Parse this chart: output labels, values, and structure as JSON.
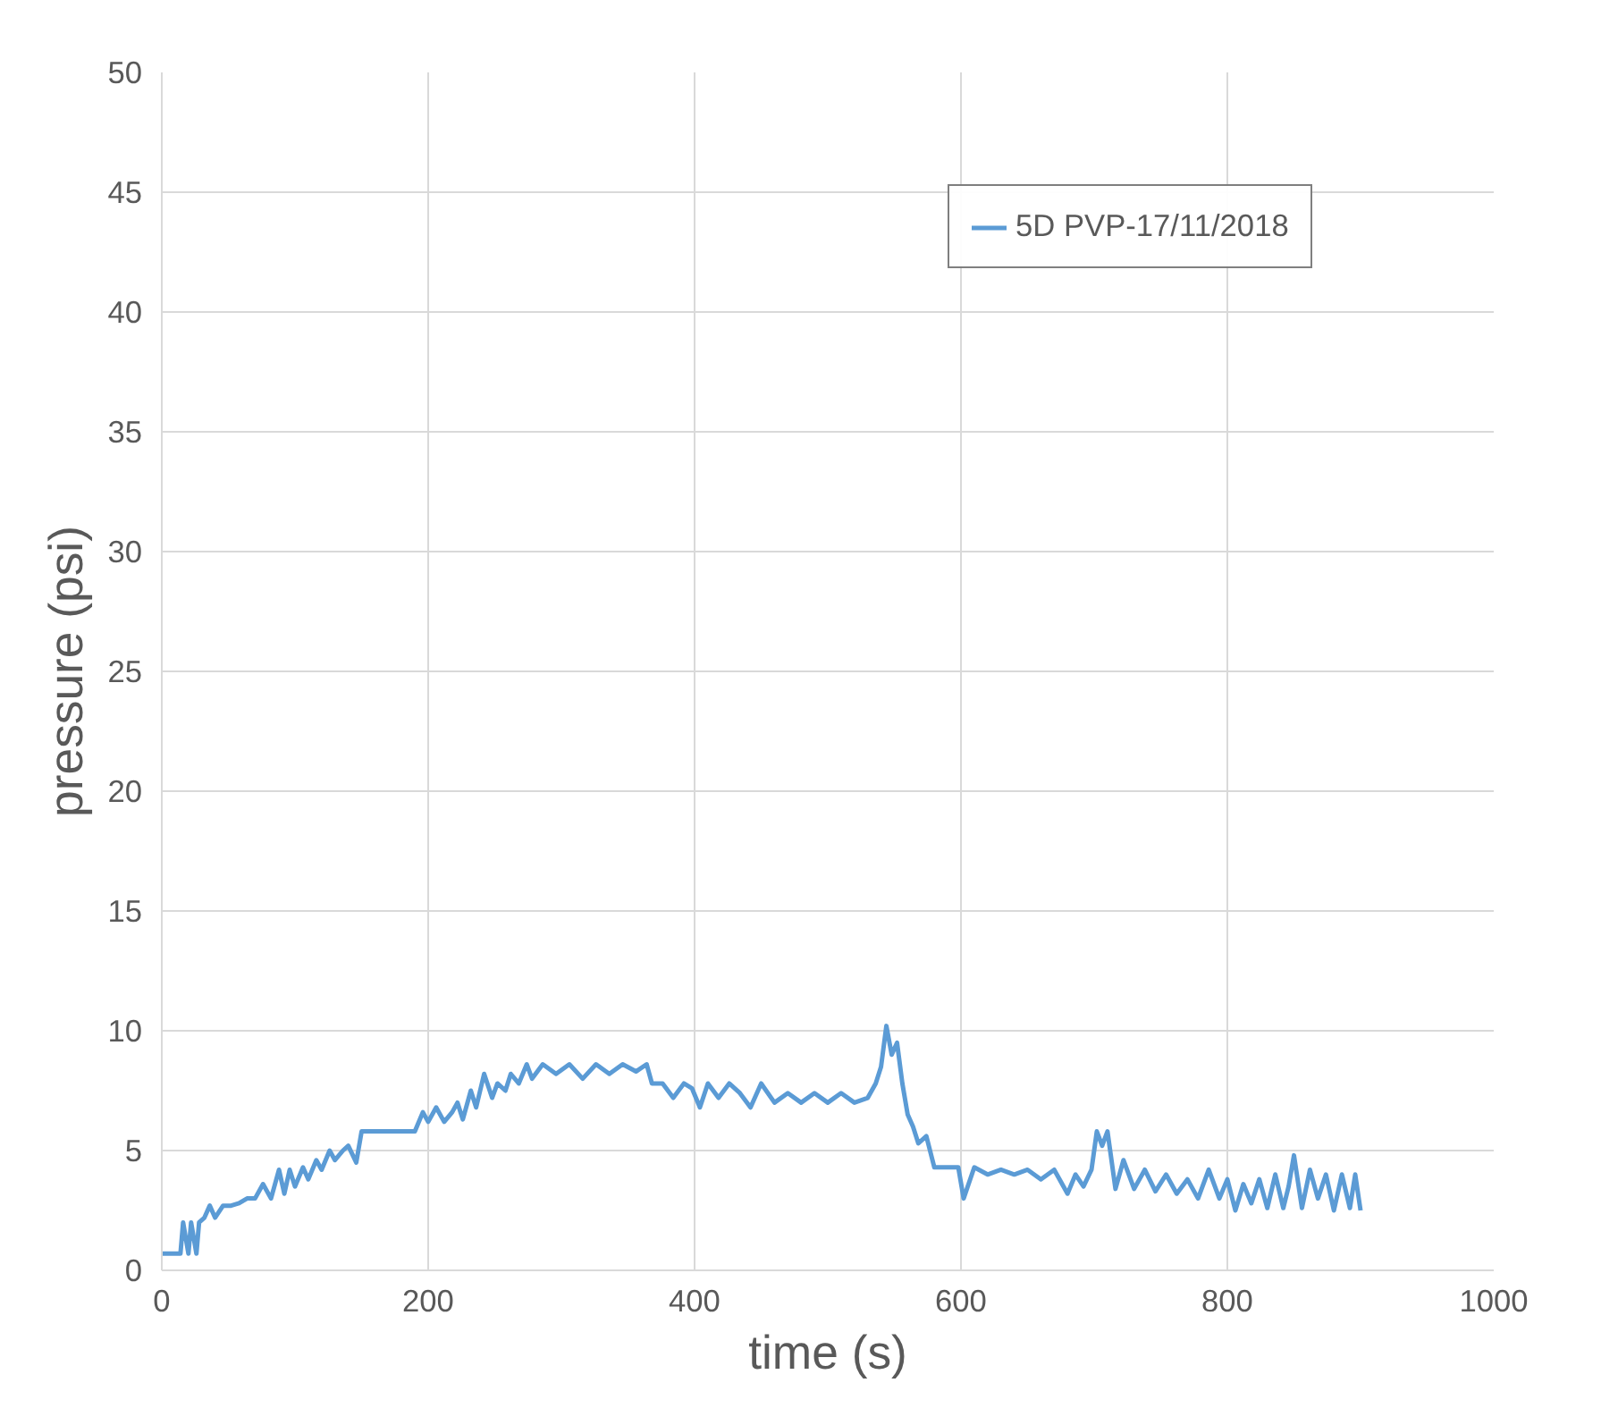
{
  "chart_data": {
    "type": "line",
    "xlabel": "time (s)",
    "ylabel": "pressure (psi)",
    "xlim": [
      0,
      1000
    ],
    "ylim": [
      0,
      50
    ],
    "xticks": [
      0,
      200,
      400,
      600,
      800,
      1000
    ],
    "yticks": [
      0,
      5,
      10,
      15,
      20,
      25,
      30,
      35,
      40,
      45,
      50
    ],
    "grid": true,
    "legend": "top right",
    "marker": "none",
    "line_style": "solid",
    "series": [
      {
        "name": "5D PVP-17/11/2018",
        "color": "#5b9bd5",
        "x": [
          0,
          14,
          16,
          20,
          22,
          26,
          28,
          32,
          36,
          40,
          46,
          52,
          58,
          64,
          70,
          76,
          82,
          88,
          92,
          96,
          100,
          106,
          110,
          116,
          120,
          126,
          130,
          136,
          140,
          146,
          150,
          160,
          170,
          180,
          190,
          196,
          200,
          206,
          212,
          218,
          222,
          226,
          232,
          236,
          242,
          248,
          252,
          258,
          262,
          268,
          274,
          278,
          286,
          296,
          306,
          316,
          326,
          336,
          346,
          356,
          364,
          368,
          376,
          384,
          392,
          398,
          404,
          410,
          418,
          426,
          434,
          442,
          450,
          460,
          470,
          480,
          490,
          500,
          510,
          520,
          530,
          536,
          540,
          544,
          548,
          552,
          556,
          560,
          564,
          568,
          574,
          580,
          586,
          592,
          598,
          602,
          610,
          620,
          630,
          640,
          650,
          660,
          670,
          680,
          686,
          692,
          698,
          702,
          706,
          710,
          716,
          722,
          730,
          738,
          746,
          754,
          762,
          770,
          778,
          786,
          794,
          800,
          806,
          812,
          818,
          824,
          830,
          836,
          842,
          846,
          850,
          856,
          862,
          868,
          874,
          880,
          886,
          892,
          896,
          900
        ],
        "values": [
          0.7,
          0.7,
          2,
          0.7,
          2,
          0.7,
          2,
          2.2,
          2.7,
          2.2,
          2.7,
          2.7,
          2.8,
          3,
          3,
          3.6,
          3,
          4.2,
          3.2,
          4.2,
          3.5,
          4.3,
          3.8,
          4.6,
          4.2,
          5,
          4.6,
          5,
          5.2,
          4.5,
          5.8,
          5.8,
          5.8,
          5.8,
          5.8,
          6.6,
          6.2,
          6.8,
          6.2,
          6.6,
          7,
          6.3,
          7.5,
          6.8,
          8.2,
          7.2,
          7.8,
          7.5,
          8.2,
          7.8,
          8.6,
          8,
          8.6,
          8.2,
          8.6,
          8,
          8.6,
          8.2,
          8.6,
          8.3,
          8.6,
          7.8,
          7.8,
          7.2,
          7.8,
          7.6,
          6.8,
          7.8,
          7.2,
          7.8,
          7.4,
          6.8,
          7.8,
          7,
          7.4,
          7,
          7.4,
          7,
          7.4,
          7,
          7.2,
          7.8,
          8.5,
          10.2,
          9,
          9.5,
          7.8,
          6.5,
          6,
          5.3,
          5.6,
          4.3,
          4.3,
          4.3,
          4.3,
          3,
          4.3,
          4,
          4.2,
          4,
          4.2,
          3.8,
          4.2,
          3.2,
          4,
          3.5,
          4.2,
          5.8,
          5.2,
          5.8,
          3.4,
          4.6,
          3.4,
          4.2,
          3.3,
          4,
          3.2,
          3.8,
          3,
          4.2,
          3,
          3.8,
          2.5,
          3.6,
          2.8,
          3.8,
          2.6,
          4,
          2.6,
          3.5,
          4.8,
          2.6,
          4.2,
          3,
          4,
          2.5,
          4,
          2.6,
          4,
          2.5
        ]
      }
    ]
  }
}
